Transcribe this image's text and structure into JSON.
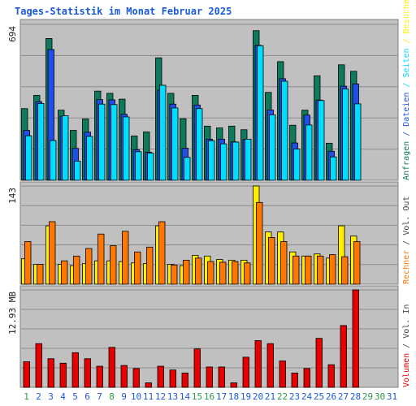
{
  "chart_data": {
    "type": "bar",
    "title": "Tages-Statistik im Monat Februar 2025",
    "categories": [
      "1",
      "2",
      "3",
      "4",
      "5",
      "6",
      "7",
      "8",
      "9",
      "10",
      "11",
      "12",
      "13",
      "14",
      "15",
      "16",
      "17",
      "18",
      "19",
      "20",
      "21",
      "22",
      "23",
      "24",
      "25",
      "26",
      "27",
      "28",
      "29",
      "30",
      "31"
    ],
    "weekend_days": [
      1,
      8,
      15,
      16,
      22,
      29,
      30
    ],
    "panels": [
      {
        "id": "top",
        "max_label": "694",
        "ymax": 694,
        "right_axis_labels": [
          "Anfragen",
          "Dateien",
          "Seiten",
          "Besuche"
        ],
        "series": [
          {
            "name": "Anfragen",
            "color": "#0e7a5c",
            "values": [
              319,
              378,
              631,
              312,
              222,
              273,
              397,
              387,
              361,
              197,
              215,
              545,
              387,
              274,
              378,
              241,
              233,
              241,
              225,
              666,
              391,
              528,
              245,
              312,
              465,
              165,
              514,
              485
            ]
          },
          {
            "name": "Dateien",
            "color": "#1f4fe8",
            "values": [
              222,
              350,
              582,
              285,
              142,
              214,
              359,
              358,
              294,
              136,
              125,
              401,
              339,
              143,
              335,
              183,
              183,
              171,
              181,
              601,
              313,
              452,
              166,
              290,
              357,
              129,
              419,
              429
            ]
          },
          {
            "name": "Seiten",
            "color": "#00ddff",
            "values": [
              198,
              342,
              177,
              287,
              85,
              195,
              339,
              337,
              282,
              127,
              121,
              423,
              322,
              102,
              319,
              176,
              162,
              170,
              183,
              599,
              291,
              441,
              139,
              246,
              355,
              104,
              406,
              340
            ]
          }
        ]
      },
      {
        "id": "middle",
        "max_label": "143",
        "ymax": 143,
        "right_axis_labels": [
          "Rechner",
          "Vol. Out"
        ],
        "series": [
          {
            "name": "Besuche",
            "color": "#ffee00",
            "values": [
              37,
              29,
              85,
              29,
              27,
              30,
              34,
              34,
              33,
              31,
              30,
              85,
              29,
              27,
              42,
              41,
              36,
              35,
              35,
              143,
              76,
              76,
              47,
              41,
              44,
              38,
              85,
              70
            ]
          },
          {
            "name": "Rechner",
            "color": "#ff7700",
            "values": [
              62,
              29,
              91,
              34,
              41,
              52,
              73,
              56,
              77,
              47,
              54,
              91,
              28,
              35,
              38,
              33,
              32,
              33,
              31,
              119,
              68,
              62,
              41,
              41,
              41,
              43,
              40,
              62
            ]
          }
        ]
      },
      {
        "id": "bottom",
        "max_label": "12.93 MB",
        "ymax": 12.93,
        "right_axis_labels": [
          "Volumen",
          "Vol. In"
        ],
        "series": [
          {
            "name": "Volumen",
            "color": "#e60000",
            "values": [
              3.4,
              5.8,
              3.8,
              3.2,
              4.6,
              3.8,
              2.8,
              5.3,
              2.9,
              2.5,
              0.6,
              2.8,
              2.3,
              1.9,
              5.1,
              2.7,
              2.7,
              0.6,
              4.0,
              6.2,
              5.8,
              3.5,
              1.9,
              2.5,
              6.5,
              3.0,
              8.2,
              12.93
            ]
          }
        ]
      }
    ]
  },
  "colors": {
    "panel_bg": "#c0c0c0",
    "panel_border": "#808080",
    "grid": "#8c8c8c",
    "title": "#1a5ad9",
    "day_label": "#1a5ad9",
    "weekend_label": "#2d9a4a",
    "label_text": "#444444"
  }
}
